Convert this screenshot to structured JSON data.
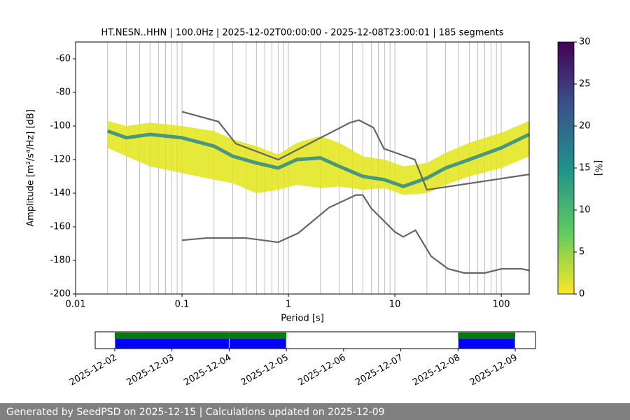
{
  "chart_data": {
    "type": "ppsd",
    "title": "HT.NESN..HHN | 100.0Hz | 2025-12-02T00:00:00 - 2025-12-08T23:00:01 | 185 segments",
    "x_label": "Period [s]",
    "y_label": "Amplitude [m²/s⁴/Hz] [dB]",
    "log_x": true,
    "grid": true,
    "xlim": [
      0.01,
      183
    ],
    "xticks": [
      0.01,
      0.1,
      1,
      10,
      100
    ],
    "xminor": [
      0.02,
      0.03,
      0.04,
      0.05,
      0.06,
      0.07,
      0.08,
      0.09,
      0.2,
      0.3,
      0.4,
      0.5,
      0.6,
      0.7,
      0.8,
      0.9,
      2,
      3,
      4,
      5,
      6,
      7,
      8,
      9,
      20,
      30,
      40,
      50,
      60,
      70,
      80,
      90
    ],
    "ylim": [
      -200,
      -50
    ],
    "yticks": [
      -200,
      -180,
      -160,
      -140,
      -120,
      -100,
      -80,
      -60
    ],
    "psd": {
      "fill": "#e2e418",
      "mode_color": "#2a8a8c",
      "periods": [
        0.02,
        0.03,
        0.05,
        0.1,
        0.2,
        0.3,
        0.5,
        0.8,
        1.2,
        2,
        3,
        5,
        8,
        12,
        20,
        30,
        50,
        100,
        183
      ],
      "mode": [
        -103,
        -107,
        -105,
        -107,
        -112,
        -118,
        -122,
        -125,
        -120,
        -119,
        -124,
        -130,
        -132,
        -136,
        -131,
        -125,
        -120,
        -113,
        -105
      ],
      "lower": [
        -113,
        -118,
        -124,
        -128,
        -132,
        -134,
        -140,
        -138,
        -135,
        -137,
        -136,
        -138,
        -137,
        -141,
        -140,
        -135,
        -130,
        -125,
        -118
      ],
      "upper": [
        -97,
        -100,
        -98,
        -100,
        -103,
        -108,
        -112,
        -117,
        -110,
        -106,
        -110,
        -118,
        -120,
        -124,
        -122,
        -116,
        -110,
        -104,
        -97
      ]
    },
    "series": [
      {
        "color": "#666666",
        "x": [
          0.1,
          0.22,
          0.32,
          0.8,
          3.8,
          4.6,
          6.3,
          7.9,
          15.4,
          20,
          183
        ],
        "values": [
          -91.5,
          -97.4,
          -110.5,
          -120,
          -98,
          -96.5,
          -101,
          -113.5,
          -120,
          -138,
          -128.8
        ]
      },
      {
        "color": "#666666",
        "x": [
          0.1,
          0.17,
          0.4,
          0.8,
          1.24,
          2.4,
          4.3,
          5,
          6,
          10,
          12,
          15.6,
          21.9,
          31.6,
          45,
          70,
          101,
          154,
          183
        ],
        "values": [
          -168,
          -166.7,
          -166.7,
          -169.2,
          -163.7,
          -148.6,
          -141.1,
          -141.1,
          -149,
          -163,
          -166,
          -162,
          -177.5,
          -185,
          -187.5,
          -187.5,
          -185,
          -185,
          -186
        ]
      }
    ],
    "colorbar": {
      "label": "[%]",
      "lim": [
        0,
        30
      ],
      "ticks": [
        0,
        5,
        10,
        15,
        20,
        25,
        30
      ]
    },
    "coverage": {
      "xlim": [
        "2025-12-01T15:48:00Z",
        "2025-12-09T08:30:00Z"
      ],
      "ticks": [
        "2025-12-02",
        "2025-12-03",
        "2025-12-04",
        "2025-12-05",
        "2025-12-06",
        "2025-12-07",
        "2025-12-08",
        "2025-12-09"
      ],
      "segments": [
        [
          "2025-12-02",
          "2025-12-04"
        ],
        [
          "2025-12-04",
          "2025-12-05"
        ],
        [
          "2025-12-08",
          "2025-12-09"
        ]
      ],
      "data_color": "#0000ff",
      "coverage_color": "#008000"
    },
    "footer": "Generated by SeedPSD on 2025-12-15 | Calculations updated on 2025-12-09"
  }
}
